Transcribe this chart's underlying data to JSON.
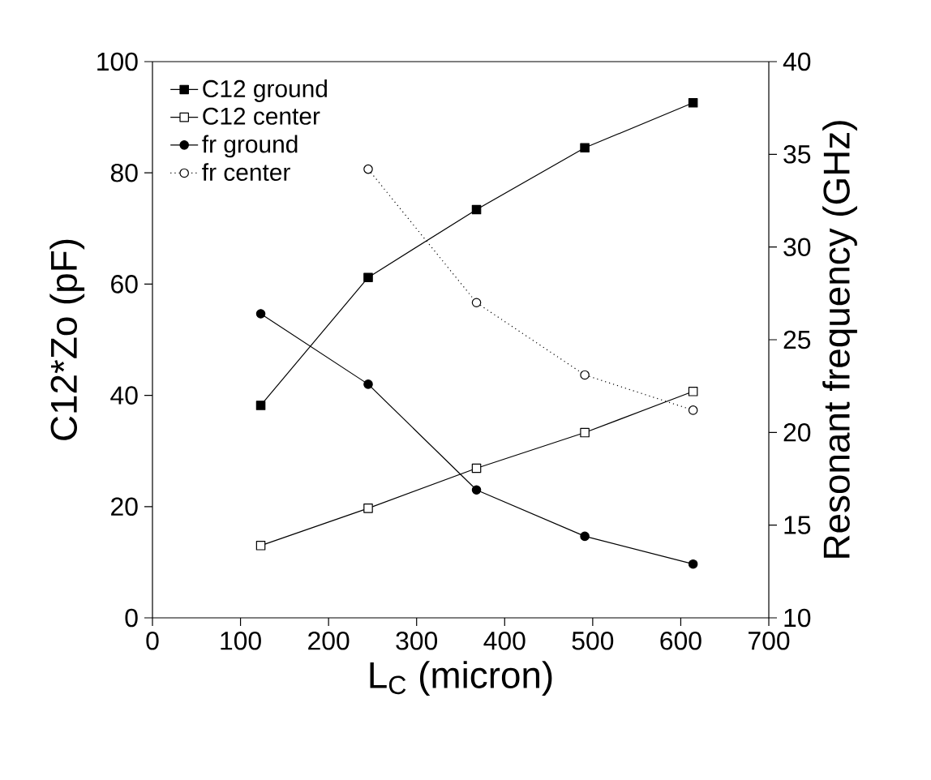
{
  "chart_data": {
    "type": "line",
    "xlabel": "L$_{C}$ (micron)",
    "ylabel": "C12*Zo (pF)",
    "y2label": "Resonant frequency (GHz)",
    "x": [
      123,
      245,
      368,
      491,
      614
    ],
    "series": [
      {
        "name": "C12 ground",
        "color": "#000000",
        "marker": "square",
        "line_style": "solid",
        "values": [
          38.2,
          61.2,
          73.4,
          84.5,
          92.6
        ]
      },
      {
        "name": "C12 center",
        "color": "#000000",
        "marker": "square",
        "line_style": "solid",
        "values": [
          13.0,
          19.7,
          26.9,
          33.3,
          40.7
        ]
      },
      {
        "name": "fr ground",
        "color": "#000000",
        "marker": "circle",
        "line_style": "solid",
        "axis": "y2",
        "values": [
          26.4,
          22.6,
          16.9,
          14.4,
          12.9
        ]
      },
      {
        "name": "fr center",
        "color": "#000000",
        "marker": "circle",
        "line_style": "dotted",
        "axis": "y2",
        "x": [
          245,
          368,
          491,
          614
        ],
        "values": [
          34.2,
          27.0,
          23.1,
          21.2
        ]
      }
    ],
    "xlim": [
      0,
      700
    ],
    "xticks": [
      0,
      100,
      200,
      300,
      400,
      500,
      600,
      700
    ],
    "ylim": [
      0,
      100
    ],
    "yticks": [
      0,
      20,
      40,
      60,
      80,
      100
    ],
    "y2lim": [
      10,
      40
    ],
    "y2ticks": [
      10,
      15,
      20,
      25,
      30,
      35,
      40
    ],
    "grid": false,
    "legend": "top left"
  }
}
